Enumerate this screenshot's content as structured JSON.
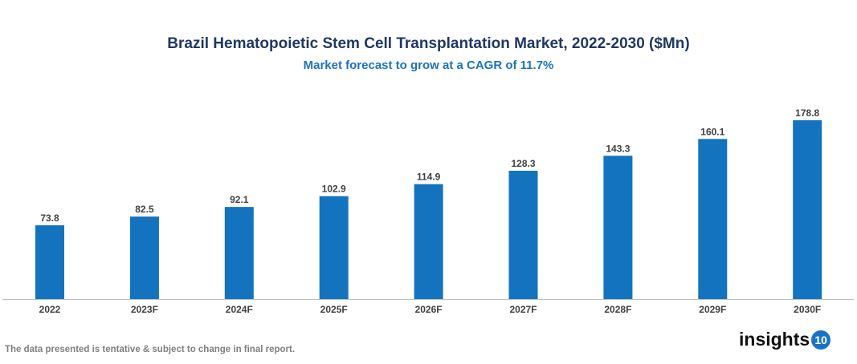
{
  "chart_data": {
    "type": "bar",
    "title": "Brazil Hematopoietic Stem Cell Transplantation Market, 2022-2030 ($Mn)",
    "subtitle": "Market forecast to grow at a CAGR of 11.7%",
    "categories": [
      "2022",
      "2023F",
      "2024F",
      "2025F",
      "2026F",
      "2027F",
      "2028F",
      "2029F",
      "2030F"
    ],
    "values": [
      73.8,
      82.5,
      92.1,
      102.9,
      114.9,
      128.3,
      143.3,
      160.1,
      178.8
    ],
    "data_labels": [
      "73.8",
      "82.5",
      "92.1",
      "102.9",
      "114.9",
      "128.3",
      "143.3",
      "160.1",
      "178.8"
    ],
    "xlabel": "",
    "ylabel": "",
    "ylim": [
      0,
      190
    ],
    "grid": false,
    "bar_color": "#1373be"
  },
  "footer": "The data presented is tentative & subject to change in final report.",
  "logo": {
    "text": "insights",
    "badge": "10"
  }
}
